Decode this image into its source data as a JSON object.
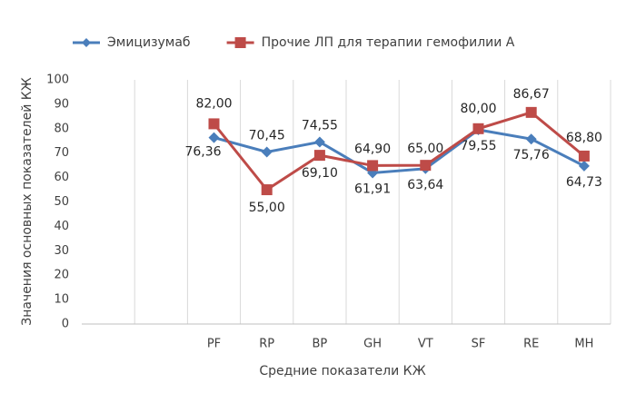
{
  "chart_data": {
    "type": "line",
    "x_label": "Средние показатели КЖ",
    "y_label": "Значения основных показателей КЖ",
    "categories": [
      null,
      null,
      "PF",
      "RP",
      "BP",
      "GH",
      "VT",
      "SF",
      "RE",
      "MH"
    ],
    "series": [
      {
        "name": "Эмицизумаб",
        "color": "#4a7ebb",
        "values": [
          null,
          null,
          76.36,
          70.45,
          74.55,
          61.91,
          63.64,
          79.55,
          75.76,
          64.73
        ],
        "value_labels": [
          null,
          null,
          "76,36",
          "70,45",
          "74,55",
          "61,91",
          "63,64",
          "79,55",
          "75,76",
          "64,73"
        ]
      },
      {
        "name": "Прочие ЛП для терапии гемофилии А",
        "color": "#be4b48",
        "values": [
          null,
          null,
          82.0,
          55.0,
          69.1,
          64.9,
          65.0,
          80.0,
          86.67,
          68.8
        ],
        "value_labels": [
          null,
          null,
          "82,00",
          "55,00",
          "69,10",
          "64,90",
          "65,00",
          "80,00",
          "86,67",
          "68,80"
        ]
      }
    ],
    "ylim": [
      0,
      100
    ],
    "yticks": [
      0,
      10,
      20,
      30,
      40,
      50,
      60,
      70,
      80,
      90,
      100
    ],
    "legend": "top",
    "vertical_grid": true
  }
}
